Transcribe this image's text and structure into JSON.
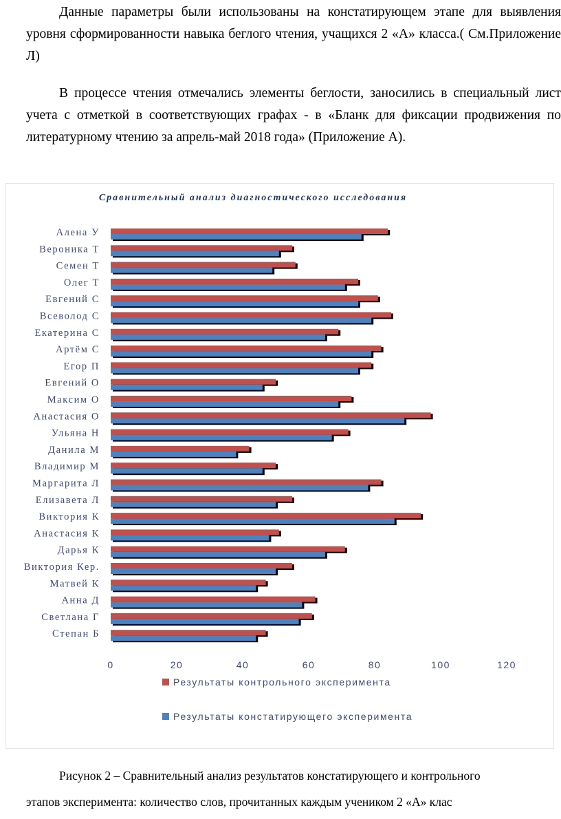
{
  "text": {
    "p1": "Данные параметры были использованы  на констатирующем этапе  для выявления уровня сформированности   навыка беглого  чтения, учащихся 2 «А» класса.( См.Приложение Л)",
    "p2": "В процессе чтения отмечались элементы беглости, заносились в специальный лист учета с отметкой в соответствующих графах -  в «Бланк для фиксации продвижения по литературному чтению за апрель-май 2018 года» (Приложение А).",
    "caption_line1": "Рисунок 2 – Сравнительный анализ результатов  констатирующего и контрольного",
    "caption_line2": "этапов эксперимента: количество слов, прочитанных каждым учеником 2 «А» клас"
  },
  "chart_data": {
    "type": "bar",
    "orientation": "horizontal",
    "title": "Сравнительный анализ диагностического исследования",
    "categories": [
      "Алена У",
      "Вероника  Т",
      "Семен Т",
      "Олег Т",
      "Евгений  С",
      "Всеволод С",
      "Екатерина  С",
      "Артём С",
      "Егор П",
      "Евгений  О",
      "Максим О",
      "Анастасия  О",
      "Ульяна  Н",
      "Данила М",
      "Владимир М",
      "Маргарита  Л",
      "Елизавета Л",
      "Виктория  К",
      "Анастасия  К",
      "Дарья  К",
      "Виктория Кер.",
      "Матвей К",
      "Анна Д",
      "Светлана  Г",
      "Степан Б"
    ],
    "series": [
      {
        "name": "Результаты контрольного эксперимента",
        "color": "#c0504d",
        "values": [
          84,
          55,
          56,
          75,
          81,
          85,
          69,
          82,
          79,
          50,
          73,
          97,
          72,
          42,
          50,
          82,
          55,
          94,
          51,
          71,
          55,
          47,
          62,
          61,
          47
        ]
      },
      {
        "name": "Результаты констатирующего эксперимента",
        "color": "#4f81bd",
        "values": [
          76,
          51,
          49,
          71,
          75,
          79,
          65,
          79,
          75,
          46,
          69,
          89,
          67,
          38,
          46,
          78,
          50,
          86,
          48,
          65,
          50,
          44,
          58,
          57,
          44
        ]
      }
    ],
    "xlim": [
      0,
      120
    ],
    "xticks": [
      0,
      20,
      40,
      60,
      80,
      100,
      120
    ],
    "grid": false,
    "legend_position": "bottom"
  }
}
